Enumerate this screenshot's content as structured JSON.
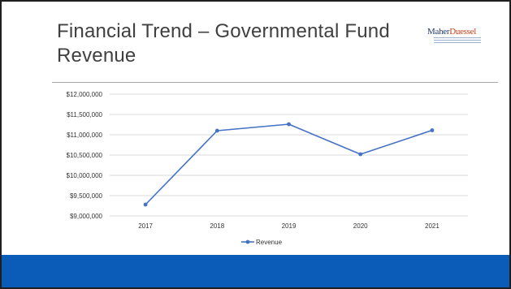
{
  "slide": {
    "title": "Financial Trend – Governmental Fund Revenue",
    "logo_part1": "Maher",
    "logo_part2": "Duessel"
  },
  "colors": {
    "line": "#4472c4",
    "gridline": "#d9d9d9",
    "footer_band": "#0a5cb8",
    "title_text": "#404040"
  },
  "chart_data": {
    "type": "line",
    "title": "",
    "xlabel": "",
    "ylabel": "",
    "categories": [
      "2017",
      "2018",
      "2019",
      "2020",
      "2021"
    ],
    "series": [
      {
        "name": "Revenue",
        "values": [
          9280000,
          11100000,
          11260000,
          10520000,
          11110000
        ]
      }
    ],
    "ylim": [
      9000000,
      12000000
    ],
    "yticks": [
      9000000,
      9500000,
      10000000,
      10500000,
      11000000,
      11500000,
      12000000
    ],
    "ytick_labels": [
      "$9,000,000",
      "$9,500,000",
      "$10,000,000",
      "$10,500,000",
      "$11,000,000",
      "$11,500,000",
      "$12,000,000"
    ],
    "grid": true,
    "legend_position": "bottom"
  }
}
